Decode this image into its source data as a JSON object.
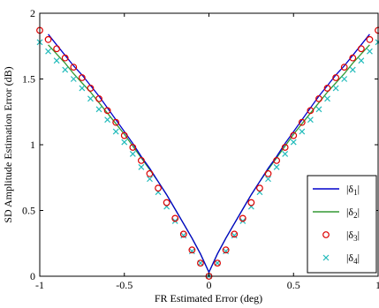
{
  "chart_data": {
    "type": "line",
    "title": "",
    "xlabel": "FR Estimated Error (deg)",
    "ylabel": "SD Amplitude Estimation Error (dB)",
    "xlim": [
      -1,
      1
    ],
    "ylim": [
      0,
      2
    ],
    "xticks": [
      -1,
      -0.5,
      0,
      0.5,
      1
    ],
    "xtick_labels": [
      "-1",
      "-0.5",
      "0",
      "0.5",
      "1"
    ],
    "yticks": [
      0,
      0.5,
      1,
      1.5,
      2
    ],
    "ytick_labels": [
      "0",
      "0.5",
      "1",
      "1.5",
      "2"
    ],
    "grid": false,
    "legend_position": "bottom-right",
    "x": [
      -0.95,
      -0.9,
      -0.85,
      -0.8,
      -0.75,
      -0.7,
      -0.65,
      -0.6,
      -0.55,
      -0.5,
      -0.45,
      -0.4,
      -0.35,
      -0.3,
      -0.25,
      -0.2,
      -0.15,
      -0.1,
      -0.05,
      0,
      0.05,
      0.1,
      0.15,
      0.2,
      0.25,
      0.3,
      0.35,
      0.4,
      0.45,
      0.5,
      0.55,
      0.6,
      0.65,
      0.7,
      0.75,
      0.8,
      0.85,
      0.9,
      0.95
    ],
    "series": [
      {
        "name": "|δ1|",
        "base": "|δ",
        "sub": "1",
        "style": "line",
        "color": "#0000cc",
        "values": [
          1.84,
          1.76,
          1.68,
          1.6,
          1.53,
          1.45,
          1.37,
          1.28,
          1.19,
          1.1,
          1.01,
          0.91,
          0.82,
          0.72,
          0.62,
          0.51,
          0.4,
          0.29,
          0.17,
          0.03,
          0.17,
          0.29,
          0.4,
          0.51,
          0.62,
          0.72,
          0.82,
          0.91,
          1.01,
          1.1,
          1.19,
          1.28,
          1.37,
          1.45,
          1.53,
          1.6,
          1.68,
          1.76,
          1.84
        ]
      },
      {
        "name": "|δ2|",
        "base": "|δ",
        "sub": "2",
        "style": "line",
        "color": "#339933",
        "values": [
          1.76,
          1.69,
          1.62,
          1.54,
          1.47,
          1.4,
          1.32,
          1.24,
          1.16,
          1.08,
          0.99,
          0.9,
          0.81,
          0.72,
          0.62,
          0.51,
          0.4,
          0.29,
          0.17,
          0.03,
          0.17,
          0.29,
          0.4,
          0.51,
          0.62,
          0.72,
          0.81,
          0.9,
          0.99,
          1.08,
          1.16,
          1.24,
          1.32,
          1.4,
          1.47,
          1.54,
          1.62,
          1.69,
          1.76
        ]
      },
      {
        "name": "|δ3|",
        "base": "|δ",
        "sub": "3",
        "style": "circle",
        "color": "#dd0000",
        "values": [
          1.87,
          1.8,
          1.73,
          1.66,
          1.59,
          1.51,
          1.43,
          1.35,
          1.26,
          1.17,
          1.07,
          0.98,
          0.88,
          0.78,
          0.67,
          0.56,
          0.44,
          0.32,
          0.2,
          0.1,
          0.0,
          0.1,
          0.2,
          0.32,
          0.44,
          0.56,
          0.67,
          0.78,
          0.88,
          0.98,
          1.07,
          1.17,
          1.26,
          1.35,
          1.43,
          1.51,
          1.59,
          1.66,
          1.73,
          1.8,
          1.87
        ],
        "x": [
          -1,
          -0.95,
          -0.9,
          -0.85,
          -0.8,
          -0.75,
          -0.7,
          -0.65,
          -0.6,
          -0.55,
          -0.5,
          -0.45,
          -0.4,
          -0.35,
          -0.3,
          -0.25,
          -0.2,
          -0.15,
          -0.1,
          -0.05,
          0,
          0.05,
          0.1,
          0.15,
          0.2,
          0.25,
          0.3,
          0.35,
          0.4,
          0.45,
          0.5,
          0.55,
          0.6,
          0.65,
          0.7,
          0.75,
          0.8,
          0.85,
          0.9,
          0.95,
          1
        ]
      },
      {
        "name": "|δ4|",
        "base": "|δ",
        "sub": "4",
        "style": "cross",
        "color": "#22bbbb",
        "values": [
          1.78,
          1.71,
          1.64,
          1.57,
          1.5,
          1.43,
          1.35,
          1.27,
          1.19,
          1.1,
          1.02,
          0.93,
          0.83,
          0.74,
          0.64,
          0.53,
          0.42,
          0.31,
          0.19,
          0.1,
          0.0,
          0.1,
          0.19,
          0.31,
          0.42,
          0.53,
          0.64,
          0.74,
          0.83,
          0.93,
          1.02,
          1.1,
          1.19,
          1.27,
          1.35,
          1.43,
          1.5,
          1.57,
          1.64,
          1.71,
          1.78
        ],
        "x": [
          -1,
          -0.95,
          -0.9,
          -0.85,
          -0.8,
          -0.75,
          -0.7,
          -0.65,
          -0.6,
          -0.55,
          -0.5,
          -0.45,
          -0.4,
          -0.35,
          -0.3,
          -0.25,
          -0.2,
          -0.15,
          -0.1,
          -0.05,
          0,
          0.05,
          0.1,
          0.15,
          0.2,
          0.25,
          0.3,
          0.35,
          0.4,
          0.45,
          0.5,
          0.55,
          0.6,
          0.65,
          0.7,
          0.75,
          0.8,
          0.85,
          0.9,
          0.95,
          1
        ]
      }
    ]
  }
}
